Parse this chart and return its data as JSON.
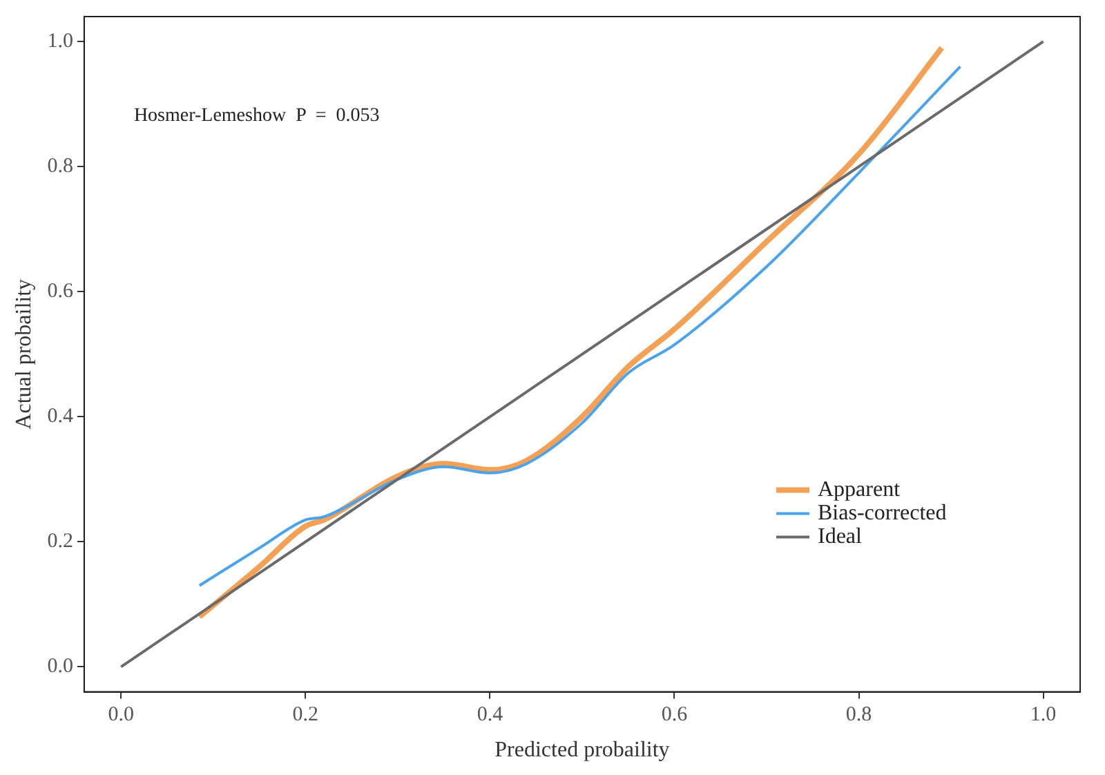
{
  "chart_data": {
    "type": "line",
    "xlabel": "Predicted probaility",
    "ylabel": "Actual probaility",
    "annotations": [
      "Hosmer-Lemeshow  P  =  0.053"
    ],
    "series": [
      {
        "name": "Apparent",
        "color": "#f4a055",
        "x": [
          0.085,
          0.15,
          0.2,
          0.22,
          0.3,
          0.35,
          0.4,
          0.44,
          0.5,
          0.55,
          0.6,
          0.7,
          0.8,
          0.89
        ],
        "values": [
          0.08,
          0.16,
          0.225,
          0.235,
          0.305,
          0.325,
          0.315,
          0.33,
          0.4,
          0.48,
          0.54,
          0.68,
          0.82,
          0.99
        ]
      },
      {
        "name": "Bias-corrected",
        "color": "#4aa3ee",
        "x": [
          0.085,
          0.15,
          0.2,
          0.22,
          0.3,
          0.35,
          0.4,
          0.44,
          0.5,
          0.55,
          0.6,
          0.7,
          0.8,
          0.91
        ],
        "values": [
          0.13,
          0.19,
          0.235,
          0.24,
          0.3,
          0.32,
          0.31,
          0.325,
          0.39,
          0.47,
          0.515,
          0.64,
          0.79,
          0.96
        ]
      },
      {
        "name": "Ideal",
        "color": "#6a6a6a",
        "x": [
          0,
          1
        ],
        "values": [
          0,
          1
        ]
      }
    ],
    "xlim": [
      -0.04,
      1.04
    ],
    "ylim": [
      -0.04,
      1.04
    ],
    "xticks": [
      {
        "value": 0,
        "label": "0.0"
      },
      {
        "value": 0.2,
        "label": "0.2"
      },
      {
        "value": 0.4,
        "label": "0.4"
      },
      {
        "value": 0.6,
        "label": "0.6"
      },
      {
        "value": 0.8,
        "label": "0.8"
      },
      {
        "value": 1,
        "label": "1.0"
      }
    ],
    "yticks": [
      {
        "value": 0,
        "label": "0.0"
      },
      {
        "value": 0.2,
        "label": "0.2"
      },
      {
        "value": 0.4,
        "label": "0.4"
      },
      {
        "value": 0.6,
        "label": "0.6"
      },
      {
        "value": 0.8,
        "label": "0.8"
      },
      {
        "value": 1,
        "label": "1.0"
      }
    ],
    "grid": false,
    "legend": "bottom right",
    "marker": "none",
    "line_style": "solid"
  }
}
